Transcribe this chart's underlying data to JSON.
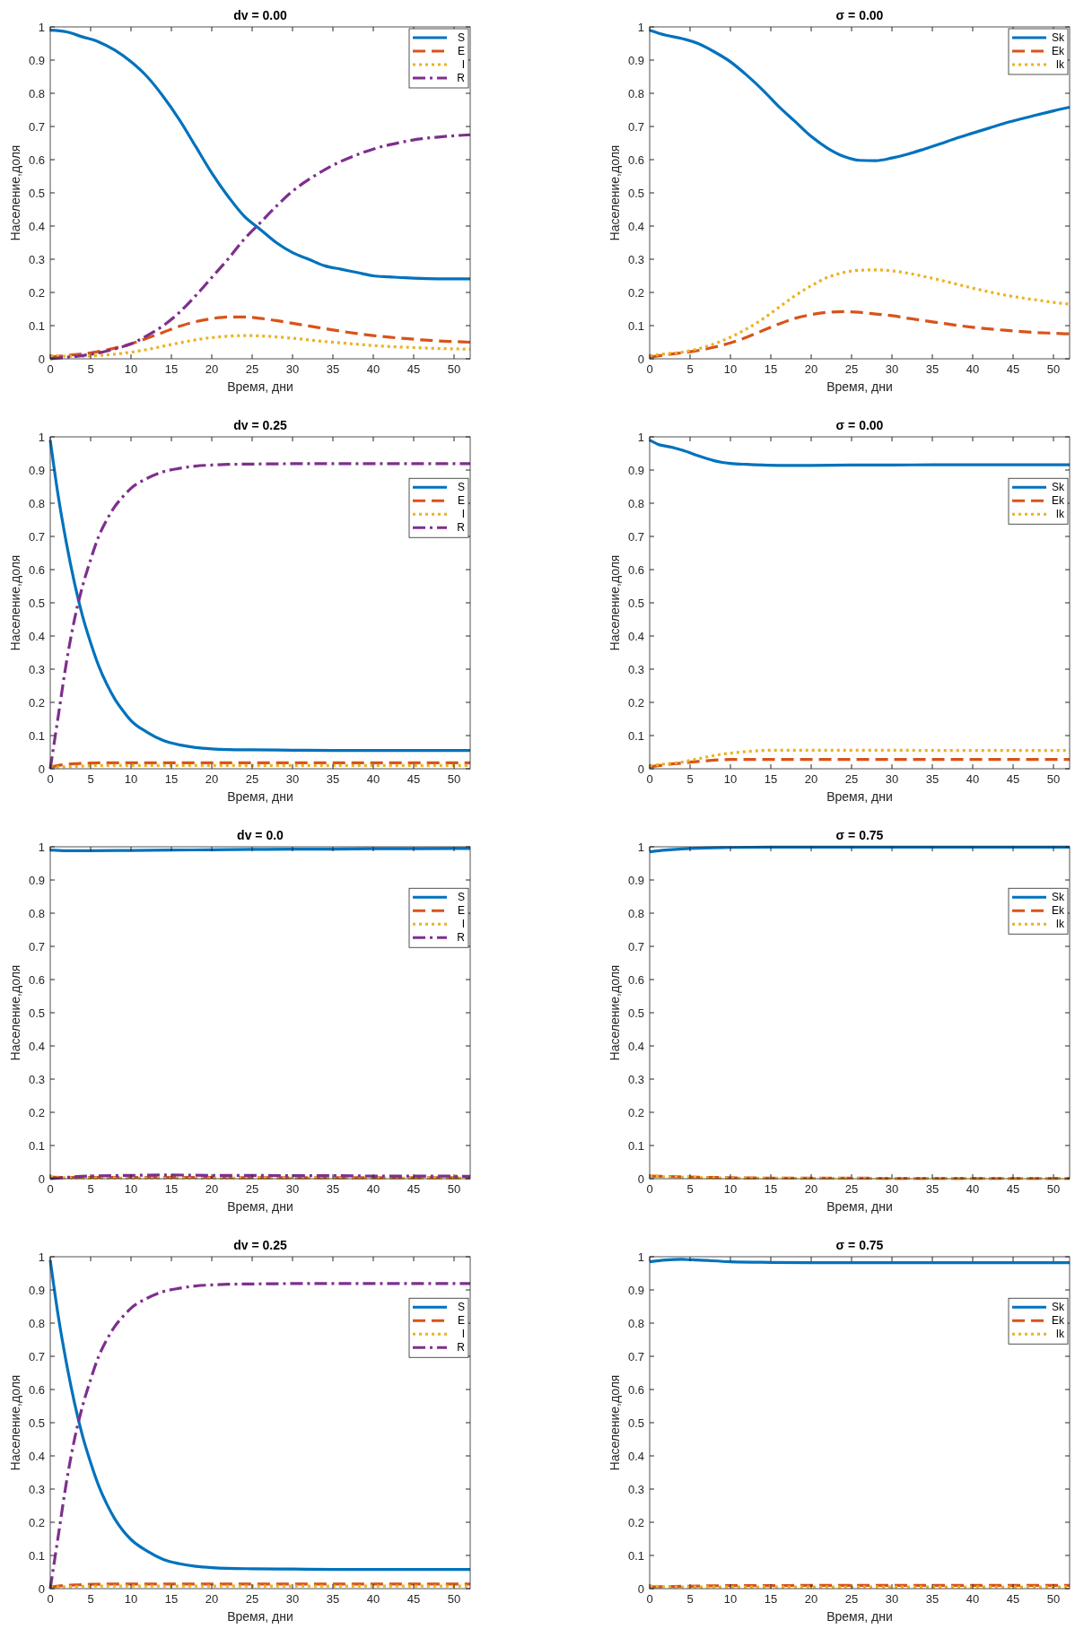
{
  "chart_data": [
    {
      "type": "line",
      "title": "dv = 0.00",
      "xlabel": "Время, дни",
      "ylabel": "Население,доля",
      "legend": "top right",
      "xlim": [
        0,
        52
      ],
      "ylim": [
        0,
        1
      ],
      "xticks": [
        0,
        5,
        10,
        15,
        20,
        25,
        30,
        35,
        40,
        45,
        50
      ],
      "yticks": [
        0,
        0.1,
        0.2,
        0.3,
        0.4,
        0.5,
        0.6,
        0.7,
        0.8,
        0.9,
        1
      ],
      "x": [
        0,
        2,
        4,
        6,
        8,
        10,
        12,
        14,
        16,
        18,
        20,
        22,
        24,
        26,
        28,
        30,
        32,
        34,
        36,
        38,
        40,
        42,
        44,
        46,
        48,
        50,
        52
      ],
      "series": [
        {
          "name": "S",
          "color": "#0072bd",
          "line_style": "solid",
          "values": [
            0.99,
            0.985,
            0.97,
            0.955,
            0.93,
            0.895,
            0.85,
            0.79,
            0.72,
            0.64,
            0.56,
            0.49,
            0.43,
            0.39,
            0.35,
            0.32,
            0.3,
            0.28,
            0.27,
            0.26,
            0.25,
            0.247,
            0.244,
            0.242,
            0.241,
            0.241,
            0.241
          ]
        },
        {
          "name": "E",
          "color": "#d95319",
          "line_style": "dashed",
          "values": [
            0.005,
            0.01,
            0.015,
            0.022,
            0.032,
            0.045,
            0.062,
            0.08,
            0.098,
            0.112,
            0.121,
            0.126,
            0.126,
            0.122,
            0.115,
            0.107,
            0.099,
            0.091,
            0.083,
            0.076,
            0.07,
            0.065,
            0.061,
            0.057,
            0.054,
            0.052,
            0.05
          ]
        },
        {
          "name": "I",
          "color": "#edb120",
          "line_style": "dotted",
          "values": [
            0.01,
            0.008,
            0.008,
            0.01,
            0.014,
            0.02,
            0.028,
            0.038,
            0.048,
            0.057,
            0.064,
            0.068,
            0.07,
            0.069,
            0.066,
            0.062,
            0.057,
            0.052,
            0.048,
            0.044,
            0.04,
            0.037,
            0.035,
            0.033,
            0.031,
            0.03,
            0.029
          ]
        },
        {
          "name": "R",
          "color": "#7e2f8e",
          "line_style": "dashdot",
          "values": [
            0,
            0.005,
            0.01,
            0.018,
            0.03,
            0.045,
            0.07,
            0.1,
            0.14,
            0.19,
            0.245,
            0.3,
            0.36,
            0.41,
            0.46,
            0.505,
            0.54,
            0.57,
            0.595,
            0.615,
            0.632,
            0.645,
            0.655,
            0.663,
            0.668,
            0.672,
            0.675
          ]
        }
      ]
    },
    {
      "type": "line",
      "title": "σ = 0.00",
      "xlabel": "Время, дни",
      "ylabel": "Население,доля",
      "legend": "top right",
      "xlim": [
        0,
        52
      ],
      "ylim": [
        0,
        1
      ],
      "xticks": [
        0,
        5,
        10,
        15,
        20,
        25,
        30,
        35,
        40,
        45,
        50
      ],
      "yticks": [
        0,
        0.1,
        0.2,
        0.3,
        0.4,
        0.5,
        0.6,
        0.7,
        0.8,
        0.9,
        1
      ],
      "x": [
        0,
        2,
        4,
        6,
        8,
        10,
        12,
        14,
        16,
        18,
        20,
        22,
        24,
        26,
        28,
        30,
        32,
        34,
        36,
        38,
        40,
        42,
        44,
        46,
        48,
        50,
        52
      ],
      "series": [
        {
          "name": "Sk",
          "color": "#0072bd",
          "line_style": "solid",
          "values": [
            0.99,
            0.975,
            0.965,
            0.95,
            0.925,
            0.895,
            0.855,
            0.81,
            0.76,
            0.715,
            0.67,
            0.635,
            0.61,
            0.598,
            0.597,
            0.605,
            0.617,
            0.632,
            0.648,
            0.665,
            0.68,
            0.695,
            0.71,
            0.723,
            0.735,
            0.747,
            0.758
          ]
        },
        {
          "name": "Ek",
          "color": "#d95319",
          "line_style": "dashed",
          "values": [
            0.005,
            0.012,
            0.018,
            0.025,
            0.035,
            0.048,
            0.065,
            0.085,
            0.105,
            0.122,
            0.133,
            0.14,
            0.142,
            0.14,
            0.135,
            0.13,
            0.122,
            0.115,
            0.108,
            0.101,
            0.095,
            0.09,
            0.086,
            0.082,
            0.079,
            0.077,
            0.075
          ]
        },
        {
          "name": "Ik",
          "color": "#edb120",
          "line_style": "dotted",
          "values": [
            0.01,
            0.015,
            0.02,
            0.03,
            0.045,
            0.065,
            0.09,
            0.12,
            0.155,
            0.19,
            0.22,
            0.245,
            0.26,
            0.267,
            0.268,
            0.265,
            0.258,
            0.248,
            0.237,
            0.225,
            0.213,
            0.202,
            0.192,
            0.184,
            0.177,
            0.17,
            0.165
          ]
        }
      ]
    },
    {
      "type": "line",
      "title": "dv = 0.25",
      "xlabel": "Время, дни",
      "ylabel": "Население,доля",
      "legend": "right",
      "xlim": [
        0,
        52
      ],
      "ylim": [
        0,
        1
      ],
      "xticks": [
        0,
        5,
        10,
        15,
        20,
        25,
        30,
        35,
        40,
        45,
        50
      ],
      "yticks": [
        0,
        0.1,
        0.2,
        0.3,
        0.4,
        0.5,
        0.6,
        0.7,
        0.8,
        0.9,
        1
      ],
      "x": [
        0,
        1,
        2,
        3,
        4,
        5,
        6,
        7,
        8,
        9,
        10,
        12,
        14,
        16,
        18,
        20,
        22,
        25,
        30,
        35,
        40,
        45,
        50,
        52
      ],
      "series": [
        {
          "name": "S",
          "color": "#0072bd",
          "line_style": "solid",
          "values": [
            0.99,
            0.82,
            0.68,
            0.56,
            0.46,
            0.38,
            0.31,
            0.255,
            0.21,
            0.175,
            0.145,
            0.11,
            0.085,
            0.072,
            0.064,
            0.06,
            0.058,
            0.057,
            0.056,
            0.055,
            0.055,
            0.055,
            0.055,
            0.055
          ]
        },
        {
          "name": "E",
          "color": "#d95319",
          "line_style": "dashed",
          "values": [
            0.005,
            0.01,
            0.013,
            0.015,
            0.016,
            0.017,
            0.018,
            0.018,
            0.018,
            0.018,
            0.018,
            0.018,
            0.018,
            0.018,
            0.018,
            0.018,
            0.018,
            0.018,
            0.018,
            0.018,
            0.018,
            0.018,
            0.018,
            0.018
          ]
        },
        {
          "name": "I",
          "color": "#edb120",
          "line_style": "dotted",
          "values": [
            0.01,
            0.005,
            0.006,
            0.007,
            0.008,
            0.009,
            0.01,
            0.01,
            0.01,
            0.01,
            0.01,
            0.01,
            0.01,
            0.01,
            0.01,
            0.01,
            0.01,
            0.01,
            0.01,
            0.01,
            0.01,
            0.01,
            0.01,
            0.01
          ]
        },
        {
          "name": "R",
          "color": "#7e2f8e",
          "line_style": "dashdot",
          "values": [
            0,
            0.16,
            0.32,
            0.45,
            0.55,
            0.63,
            0.7,
            0.75,
            0.79,
            0.82,
            0.845,
            0.875,
            0.895,
            0.905,
            0.912,
            0.915,
            0.917,
            0.918,
            0.919,
            0.919,
            0.919,
            0.919,
            0.919,
            0.919
          ]
        }
      ]
    },
    {
      "type": "line",
      "title": "σ = 0.00",
      "xlabel": "Время, дни",
      "ylabel": "Население,доля",
      "legend": "right",
      "xlim": [
        0,
        52
      ],
      "ylim": [
        0,
        1
      ],
      "xticks": [
        0,
        5,
        10,
        15,
        20,
        25,
        30,
        35,
        40,
        45,
        50
      ],
      "yticks": [
        0,
        0.1,
        0.2,
        0.3,
        0.4,
        0.5,
        0.6,
        0.7,
        0.8,
        0.9,
        1
      ],
      "x": [
        0,
        1,
        2,
        3,
        4,
        5,
        6,
        7,
        8,
        9,
        10,
        12,
        14,
        16,
        18,
        20,
        25,
        30,
        35,
        40,
        45,
        50,
        52
      ],
      "series": [
        {
          "name": "Sk",
          "color": "#0072bd",
          "line_style": "solid",
          "values": [
            0.99,
            0.978,
            0.972,
            0.967,
            0.96,
            0.952,
            0.943,
            0.935,
            0.928,
            0.923,
            0.92,
            0.917,
            0.915,
            0.914,
            0.914,
            0.914,
            0.915,
            0.915,
            0.916,
            0.916,
            0.916,
            0.916,
            0.916
          ]
        },
        {
          "name": "Ek",
          "color": "#d95319",
          "line_style": "dashed",
          "values": [
            0.005,
            0.009,
            0.012,
            0.015,
            0.017,
            0.02,
            0.022,
            0.024,
            0.026,
            0.027,
            0.028,
            0.028,
            0.028,
            0.028,
            0.028,
            0.028,
            0.028,
            0.028,
            0.028,
            0.028,
            0.028,
            0.028,
            0.028
          ]
        },
        {
          "name": "Ik",
          "color": "#edb120",
          "line_style": "dotted",
          "values": [
            0.01,
            0.012,
            0.015,
            0.017,
            0.02,
            0.025,
            0.03,
            0.035,
            0.04,
            0.044,
            0.047,
            0.052,
            0.055,
            0.056,
            0.056,
            0.056,
            0.056,
            0.056,
            0.055,
            0.055,
            0.055,
            0.055,
            0.055
          ]
        }
      ]
    },
    {
      "type": "line",
      "title": "dv = 0.0",
      "xlabel": "Время, дни",
      "ylabel": "Население,доля",
      "legend": "right",
      "xlim": [
        0,
        52
      ],
      "ylim": [
        0,
        1
      ],
      "xticks": [
        0,
        5,
        10,
        15,
        20,
        25,
        30,
        35,
        40,
        45,
        50
      ],
      "yticks": [
        0,
        0.1,
        0.2,
        0.3,
        0.4,
        0.5,
        0.6,
        0.7,
        0.8,
        0.9,
        1
      ],
      "x": [
        0,
        2,
        5,
        10,
        15,
        20,
        25,
        30,
        35,
        40,
        45,
        52
      ],
      "series": [
        {
          "name": "S",
          "color": "#0072bd",
          "line_style": "solid",
          "values": [
            0.99,
            0.988,
            0.988,
            0.989,
            0.99,
            0.991,
            0.992,
            0.993,
            0.993,
            0.994,
            0.994,
            0.995
          ]
        },
        {
          "name": "E",
          "color": "#d95319",
          "line_style": "dashed",
          "values": [
            0.005,
            0.004,
            0.004,
            0.004,
            0.004,
            0.004,
            0.003,
            0.003,
            0.003,
            0.003,
            0.003,
            0.003
          ]
        },
        {
          "name": "I",
          "color": "#edb120",
          "line_style": "dotted",
          "values": [
            0.005,
            0.003,
            0.002,
            0.002,
            0.002,
            0.002,
            0.002,
            0.002,
            0.002,
            0.002,
            0.002,
            0.002
          ]
        },
        {
          "name": "R",
          "color": "#7e2f8e",
          "line_style": "dashdot",
          "values": [
            0,
            0.004,
            0.008,
            0.01,
            0.011,
            0.01,
            0.01,
            0.009,
            0.009,
            0.008,
            0.008,
            0.007
          ]
        }
      ]
    },
    {
      "type": "line",
      "title": "σ = 0.75",
      "xlabel": "Время, дни",
      "ylabel": "Население,доля",
      "legend": "right",
      "xlim": [
        0,
        52
      ],
      "ylim": [
        0,
        1
      ],
      "xticks": [
        0,
        5,
        10,
        15,
        20,
        25,
        30,
        35,
        40,
        45,
        50
      ],
      "yticks": [
        0,
        0.1,
        0.2,
        0.3,
        0.4,
        0.5,
        0.6,
        0.7,
        0.8,
        0.9,
        1
      ],
      "x": [
        0,
        2,
        5,
        10,
        15,
        20,
        25,
        30,
        35,
        40,
        45,
        52
      ],
      "series": [
        {
          "name": "Sk",
          "color": "#0072bd",
          "line_style": "solid",
          "values": [
            0.985,
            0.99,
            0.995,
            0.998,
            0.999,
            0.999,
            0.999,
            0.999,
            0.999,
            0.999,
            0.999,
            0.999
          ]
        },
        {
          "name": "Ek",
          "color": "#d95319",
          "line_style": "dashed",
          "values": [
            0.008,
            0.007,
            0.005,
            0.003,
            0.002,
            0.002,
            0.002,
            0.001,
            0.001,
            0.001,
            0.001,
            0.001
          ]
        },
        {
          "name": "Ik",
          "color": "#edb120",
          "line_style": "dotted",
          "values": [
            0.008,
            0.006,
            0.004,
            0.002,
            0.002,
            0.001,
            0.001,
            0.001,
            0.001,
            0.001,
            0.001,
            0.001
          ]
        }
      ]
    },
    {
      "type": "line",
      "title": "dv = 0.25",
      "xlabel": "Время, дни",
      "ylabel": "Население,доля",
      "legend": "right",
      "xlim": [
        0,
        52
      ],
      "ylim": [
        0,
        1
      ],
      "xticks": [
        0,
        5,
        10,
        15,
        20,
        25,
        30,
        35,
        40,
        45,
        50
      ],
      "yticks": [
        0,
        0.1,
        0.2,
        0.3,
        0.4,
        0.5,
        0.6,
        0.7,
        0.8,
        0.9,
        1
      ],
      "x": [
        0,
        1,
        2,
        3,
        4,
        5,
        6,
        7,
        8,
        9,
        10,
        12,
        14,
        16,
        18,
        20,
        22,
        25,
        30,
        35,
        40,
        45,
        50,
        52
      ],
      "series": [
        {
          "name": "S",
          "color": "#0072bd",
          "line_style": "solid",
          "values": [
            0.99,
            0.82,
            0.68,
            0.56,
            0.46,
            0.38,
            0.31,
            0.255,
            0.21,
            0.175,
            0.148,
            0.113,
            0.088,
            0.075,
            0.067,
            0.063,
            0.061,
            0.06,
            0.059,
            0.058,
            0.058,
            0.058,
            0.058,
            0.058
          ]
        },
        {
          "name": "E",
          "color": "#d95319",
          "line_style": "dashed",
          "values": [
            0.005,
            0.008,
            0.01,
            0.011,
            0.012,
            0.013,
            0.013,
            0.014,
            0.014,
            0.014,
            0.014,
            0.014,
            0.014,
            0.014,
            0.014,
            0.014,
            0.014,
            0.014,
            0.014,
            0.014,
            0.014,
            0.014,
            0.014,
            0.014
          ]
        },
        {
          "name": "I",
          "color": "#edb120",
          "line_style": "dotted",
          "values": [
            0.008,
            0.005,
            0.006,
            0.006,
            0.007,
            0.007,
            0.008,
            0.008,
            0.008,
            0.008,
            0.008,
            0.008,
            0.008,
            0.008,
            0.008,
            0.008,
            0.008,
            0.008,
            0.008,
            0.008,
            0.008,
            0.008,
            0.008,
            0.008
          ]
        },
        {
          "name": "R",
          "color": "#7e2f8e",
          "line_style": "dashdot",
          "values": [
            0,
            0.16,
            0.32,
            0.45,
            0.55,
            0.63,
            0.7,
            0.75,
            0.79,
            0.82,
            0.845,
            0.875,
            0.895,
            0.905,
            0.912,
            0.915,
            0.917,
            0.918,
            0.919,
            0.919,
            0.919,
            0.919,
            0.919,
            0.919
          ]
        }
      ]
    },
    {
      "type": "line",
      "title": "σ = 0.75",
      "xlabel": "Время, дни",
      "ylabel": "Население,доля",
      "legend": "right",
      "xlim": [
        0,
        52
      ],
      "ylim": [
        0,
        1
      ],
      "xticks": [
        0,
        5,
        10,
        15,
        20,
        25,
        30,
        35,
        40,
        45,
        50
      ],
      "yticks": [
        0,
        0.1,
        0.2,
        0.3,
        0.4,
        0.5,
        0.6,
        0.7,
        0.8,
        0.9,
        1
      ],
      "x": [
        0,
        2,
        4,
        6,
        10,
        15,
        20,
        25,
        30,
        35,
        40,
        45,
        52
      ],
      "series": [
        {
          "name": "Sk",
          "color": "#0072bd",
          "line_style": "solid",
          "values": [
            0.985,
            0.99,
            0.992,
            0.99,
            0.985,
            0.983,
            0.982,
            0.982,
            0.982,
            0.982,
            0.982,
            0.982,
            0.982
          ]
        },
        {
          "name": "Ek",
          "color": "#d95319",
          "line_style": "dashed",
          "values": [
            0.005,
            0.006,
            0.007,
            0.008,
            0.009,
            0.009,
            0.01,
            0.01,
            0.01,
            0.01,
            0.01,
            0.01,
            0.01
          ]
        },
        {
          "name": "Ik",
          "color": "#edb120",
          "line_style": "dotted",
          "values": [
            0.008,
            0.006,
            0.005,
            0.005,
            0.005,
            0.005,
            0.005,
            0.005,
            0.005,
            0.005,
            0.005,
            0.005,
            0.005
          ]
        }
      ]
    }
  ]
}
